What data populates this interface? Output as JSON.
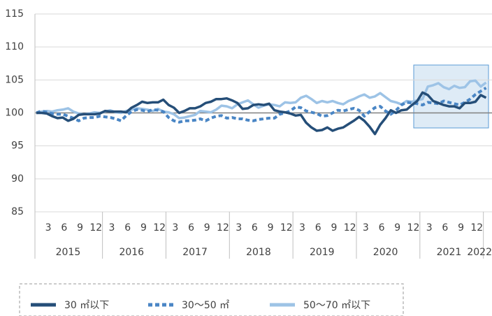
{
  "chart_data": {
    "type": "line",
    "categories": [
      null,
      null,
      "3",
      null,
      null,
      "6",
      null,
      null,
      "9",
      null,
      null,
      "12",
      null,
      null,
      "3",
      null,
      null,
      "6",
      null,
      null,
      "9",
      null,
      null,
      "12",
      null,
      null,
      "3",
      null,
      null,
      "6",
      null,
      null,
      "9",
      null,
      null,
      "12",
      null,
      null,
      "3",
      null,
      null,
      "6",
      null,
      null,
      "9",
      null,
      null,
      "12",
      null,
      null,
      "3",
      null,
      null,
      "6",
      null,
      null,
      "9",
      null,
      null,
      "12",
      null,
      null,
      "3",
      null,
      null,
      "6",
      null,
      null,
      "9",
      null,
      null,
      "12",
      null,
      null,
      "3",
      null,
      null,
      "6",
      null,
      null,
      "9",
      null,
      null,
      "12",
      null,
      null
    ],
    "years": [
      "2015",
      "2016",
      "2017",
      "2018",
      "2019",
      "2020",
      "2021",
      "2022"
    ],
    "ylim": [
      85,
      115
    ],
    "yticks": [
      85,
      90,
      95,
      100,
      105,
      110,
      115
    ],
    "grid": true,
    "series": [
      {
        "name": "30 ㎡以下",
        "color": "#254e78",
        "style": "solid",
        "values": [
          100,
          100,
          99.9,
          99.5,
          99.2,
          99.3,
          98.8,
          99.1,
          99.7,
          99.8,
          99.8,
          99.8,
          99.9,
          100.3,
          100.2,
          100.2,
          100.2,
          100.1,
          100.8,
          101.2,
          101.7,
          101.5,
          101.6,
          101.6,
          102.0,
          101.2,
          100.8,
          100.0,
          100.3,
          100.7,
          100.7,
          101.0,
          101.5,
          101.7,
          102.1,
          102.1,
          102.2,
          101.9,
          101.5,
          100.6,
          100.7,
          101.2,
          101.3,
          101.2,
          101.4,
          100.4,
          100.2,
          100.1,
          99.9,
          99.6,
          99.7,
          98.5,
          97.8,
          97.3,
          97.4,
          97.8,
          97.3,
          97.6,
          97.8,
          98.3,
          98.8,
          99.4,
          98.8,
          97.9,
          96.8,
          98.2,
          99.2,
          100.4,
          100.0,
          100.4,
          100.5,
          101.2,
          101.8,
          103.1,
          102.7,
          101.8,
          101.5,
          101.2,
          101.0,
          101.0,
          100.7,
          101.5,
          101.5,
          101.7,
          102.7,
          102.3
        ]
      },
      {
        "name": "30～50 ㎡",
        "color": "#4a86c5",
        "style": "dashed",
        "values": [
          100,
          100.3,
          100.1,
          99.9,
          99.8,
          99.8,
          99.5,
          99.2,
          98.8,
          99.2,
          99.3,
          99.3,
          99.5,
          99.4,
          99.3,
          99.1,
          98.8,
          99.6,
          100.2,
          100.5,
          100.4,
          100.2,
          100.5,
          100.4,
          100.2,
          99.3,
          98.8,
          98.6,
          98.8,
          98.8,
          98.9,
          99.1,
          98.8,
          99.2,
          99.5,
          99.6,
          99.2,
          99.3,
          99.1,
          99.1,
          98.9,
          98.8,
          99.0,
          99.1,
          99.2,
          99.2,
          99.8,
          100.0,
          100.3,
          100.9,
          100.8,
          100.3,
          100.1,
          99.9,
          99.5,
          99.6,
          100.0,
          100.4,
          100.3,
          100.5,
          100.7,
          100.4,
          99.5,
          100.2,
          100.8,
          101.0,
          100.3,
          99.8,
          100.4,
          101.2,
          101.6,
          101.5,
          101.4,
          101.2,
          101.6,
          101.5,
          101.4,
          101.8,
          101.6,
          101.4,
          101.2,
          101.6,
          102.1,
          102.8,
          103.3,
          103.8
        ]
      },
      {
        "name": "50～70 ㎡以下",
        "color": "#9dc3e6",
        "style": "solid",
        "values": [
          100,
          100.2,
          100.3,
          100.2,
          100.4,
          100.5,
          100.7,
          100.2,
          99.9,
          99.8,
          99.9,
          100.1,
          100.0,
          100.2,
          100.4,
          100.1,
          100.0,
          100.3,
          100.5,
          100.7,
          100.6,
          100.5,
          100.3,
          100.6,
          100.2,
          100.1,
          99.8,
          99.2,
          99.3,
          99.5,
          99.7,
          100.3,
          100.2,
          100.1,
          100.5,
          101.1,
          101.0,
          100.7,
          101.3,
          101.6,
          101.9,
          101.3,
          100.8,
          101.1,
          101.3,
          101.2,
          101.0,
          101.6,
          101.5,
          101.6,
          102.3,
          102.6,
          102.1,
          101.5,
          101.8,
          101.6,
          101.8,
          101.5,
          101.3,
          101.8,
          102.1,
          102.5,
          102.8,
          102.3,
          102.5,
          103.0,
          102.4,
          101.8,
          101.6,
          101.3,
          101.8,
          101.7,
          101.9,
          102.1,
          104.0,
          104.2,
          104.5,
          103.9,
          103.6,
          104.1,
          103.8,
          103.9,
          104.8,
          104.9,
          104.0,
          104.6
        ]
      }
    ]
  }
}
